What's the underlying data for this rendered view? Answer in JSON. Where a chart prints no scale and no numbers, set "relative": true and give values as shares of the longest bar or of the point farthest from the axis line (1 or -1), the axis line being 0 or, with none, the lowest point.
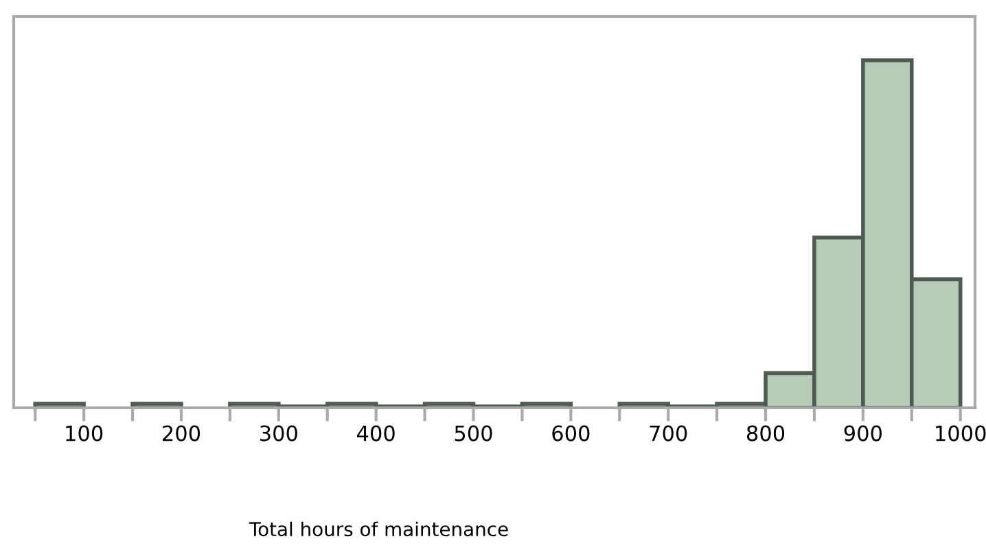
{
  "chart_data": {
    "type": "bar",
    "xlabel": "Total hours of maintenance",
    "relative": true,
    "color": "#b8cbb9",
    "x": [
      75,
      125,
      175,
      225,
      275,
      325,
      375,
      425,
      475,
      525,
      575,
      625,
      675,
      725,
      775,
      825,
      875,
      925,
      975
    ],
    "values": [
      0.012,
      0,
      0.012,
      0,
      0.012,
      0.004,
      0.012,
      0.004,
      0.012,
      0.004,
      0.012,
      0,
      0.012,
      0.004,
      0.012,
      0.1,
      0.49,
      1,
      0.37
    ],
    "xlim": [
      28,
      1015
    ],
    "xticks": [
      {
        "value": 50,
        "label": null
      },
      100,
      {
        "value": 150,
        "label": null
      },
      200,
      {
        "value": 250,
        "label": null
      },
      300,
      {
        "value": 350,
        "label": null
      },
      400,
      {
        "value": 450,
        "label": null
      },
      500,
      {
        "value": 550,
        "label": null
      },
      600,
      {
        "value": 650,
        "label": null
      },
      700,
      {
        "value": 750,
        "label": null
      },
      800,
      {
        "value": 850,
        "label": null
      },
      900,
      {
        "value": 950,
        "label": null
      },
      1000
    ],
    "grid": false,
    "legend": false
  }
}
